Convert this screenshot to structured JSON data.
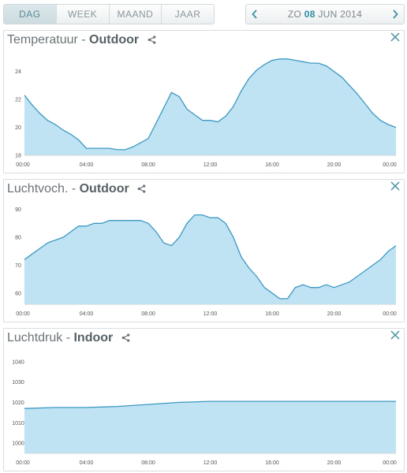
{
  "toolbar": {
    "periods": [
      "DAG",
      "WEEK",
      "MAAND",
      "JAAR"
    ],
    "active_period": "DAG",
    "date": {
      "weekday": "ZO",
      "day": "08",
      "month_year": "JUN 2014"
    },
    "prev_icon": "chevron-left-icon",
    "next_icon": "chevron-right-icon"
  },
  "colors": {
    "fill": "#bfe3f3",
    "line": "#3d98c2",
    "accent": "#2f8aa0"
  },
  "panels": [
    {
      "label": "Temperatuur - ",
      "sensor": "Outdoor",
      "share_icon": "share-icon",
      "close_icon": "close-icon"
    },
    {
      "label": "Luchtvoch. - ",
      "sensor": "Outdoor",
      "share_icon": "share-icon",
      "close_icon": "close-icon"
    },
    {
      "label": "Luchtdruk - ",
      "sensor": "Indoor",
      "share_icon": "share-icon",
      "close_icon": "close-icon"
    }
  ],
  "chart_data": [
    {
      "type": "area",
      "title": "Temperatuur - Outdoor",
      "xlabel": "",
      "ylabel": "",
      "x_ticks": [
        "00:00",
        "04:00",
        "08:00",
        "12:00",
        "16:00",
        "20:00",
        "00:00"
      ],
      "y_ticks": [
        18,
        20,
        22,
        24
      ],
      "xlim": [
        0,
        24
      ],
      "ylim": [
        18,
        25
      ],
      "grid": false,
      "x": [
        0,
        0.5,
        1,
        1.5,
        2,
        2.5,
        3,
        3.5,
        4,
        4.5,
        5,
        5.5,
        6,
        6.5,
        7,
        7.5,
        8,
        8.5,
        9,
        9.5,
        10,
        10.5,
        11,
        11.5,
        12,
        12.5,
        13,
        13.5,
        14,
        14.5,
        15,
        15.5,
        16,
        16.5,
        17,
        17.5,
        18,
        18.5,
        19,
        19.5,
        20,
        20.5,
        21,
        21.5,
        22,
        22.5,
        23,
        23.5,
        24
      ],
      "values": [
        22.3,
        21.6,
        21.0,
        20.5,
        20.2,
        19.8,
        19.5,
        19.1,
        18.5,
        18.5,
        18.5,
        18.5,
        18.4,
        18.4,
        18.6,
        18.9,
        19.2,
        20.3,
        21.4,
        22.5,
        22.2,
        21.3,
        20.9,
        20.5,
        20.5,
        20.4,
        20.8,
        21.5,
        22.6,
        23.5,
        24.1,
        24.5,
        24.8,
        24.9,
        24.9,
        24.8,
        24.7,
        24.6,
        24.6,
        24.4,
        24.0,
        23.6,
        23.0,
        22.4,
        21.7,
        21.0,
        20.5,
        20.2,
        20.0
      ]
    },
    {
      "type": "area",
      "title": "Luchtvoch. - Outdoor",
      "xlabel": "",
      "ylabel": "",
      "x_ticks": [
        "00:00",
        "04:00",
        "08:00",
        "12:00",
        "16:00",
        "20:00",
        "00:00"
      ],
      "y_ticks": [
        60,
        70,
        80,
        90
      ],
      "xlim": [
        0,
        24
      ],
      "ylim": [
        56,
        91
      ],
      "grid": false,
      "x": [
        0,
        0.5,
        1,
        1.5,
        2,
        2.5,
        3,
        3.5,
        4,
        4.5,
        5,
        5.5,
        6,
        6.5,
        7,
        7.5,
        8,
        8.5,
        9,
        9.5,
        10,
        10.5,
        11,
        11.5,
        12,
        12.5,
        13,
        13.5,
        14,
        14.5,
        15,
        15.5,
        16,
        16.5,
        17,
        17.5,
        18,
        18.5,
        19,
        19.5,
        20,
        20.5,
        21,
        21.5,
        22,
        22.5,
        23,
        23.5,
        24
      ],
      "values": [
        72,
        74,
        76,
        78,
        79,
        80,
        82,
        84,
        84,
        85,
        85,
        86,
        86,
        86,
        86,
        86,
        85,
        82,
        78,
        77,
        80,
        85,
        88,
        88,
        87,
        87,
        85,
        80,
        73,
        69,
        66,
        62,
        60,
        58,
        58,
        62,
        63,
        62,
        62,
        63,
        62,
        63,
        64,
        66,
        68,
        70,
        72,
        75,
        77
      ]
    },
    {
      "type": "area",
      "title": "Luchtdruk - Indoor",
      "xlabel": "",
      "ylabel": "",
      "x_ticks": [
        "00:00",
        "04:00",
        "08:00",
        "12:00",
        "16:00",
        "20:00",
        "00:00"
      ],
      "y_ticks": [
        1000,
        1010,
        1020,
        1030,
        1040
      ],
      "xlim": [
        0,
        24
      ],
      "ylim": [
        995,
        1043
      ],
      "grid": false,
      "x": [
        0,
        2,
        4,
        6,
        8,
        10,
        12,
        14,
        16,
        18,
        20,
        22,
        24
      ],
      "values": [
        1017,
        1017.5,
        1017.5,
        1018,
        1019,
        1020,
        1020.5,
        1020.5,
        1020.5,
        1020.5,
        1020.5,
        1020.5,
        1020.5
      ]
    }
  ]
}
